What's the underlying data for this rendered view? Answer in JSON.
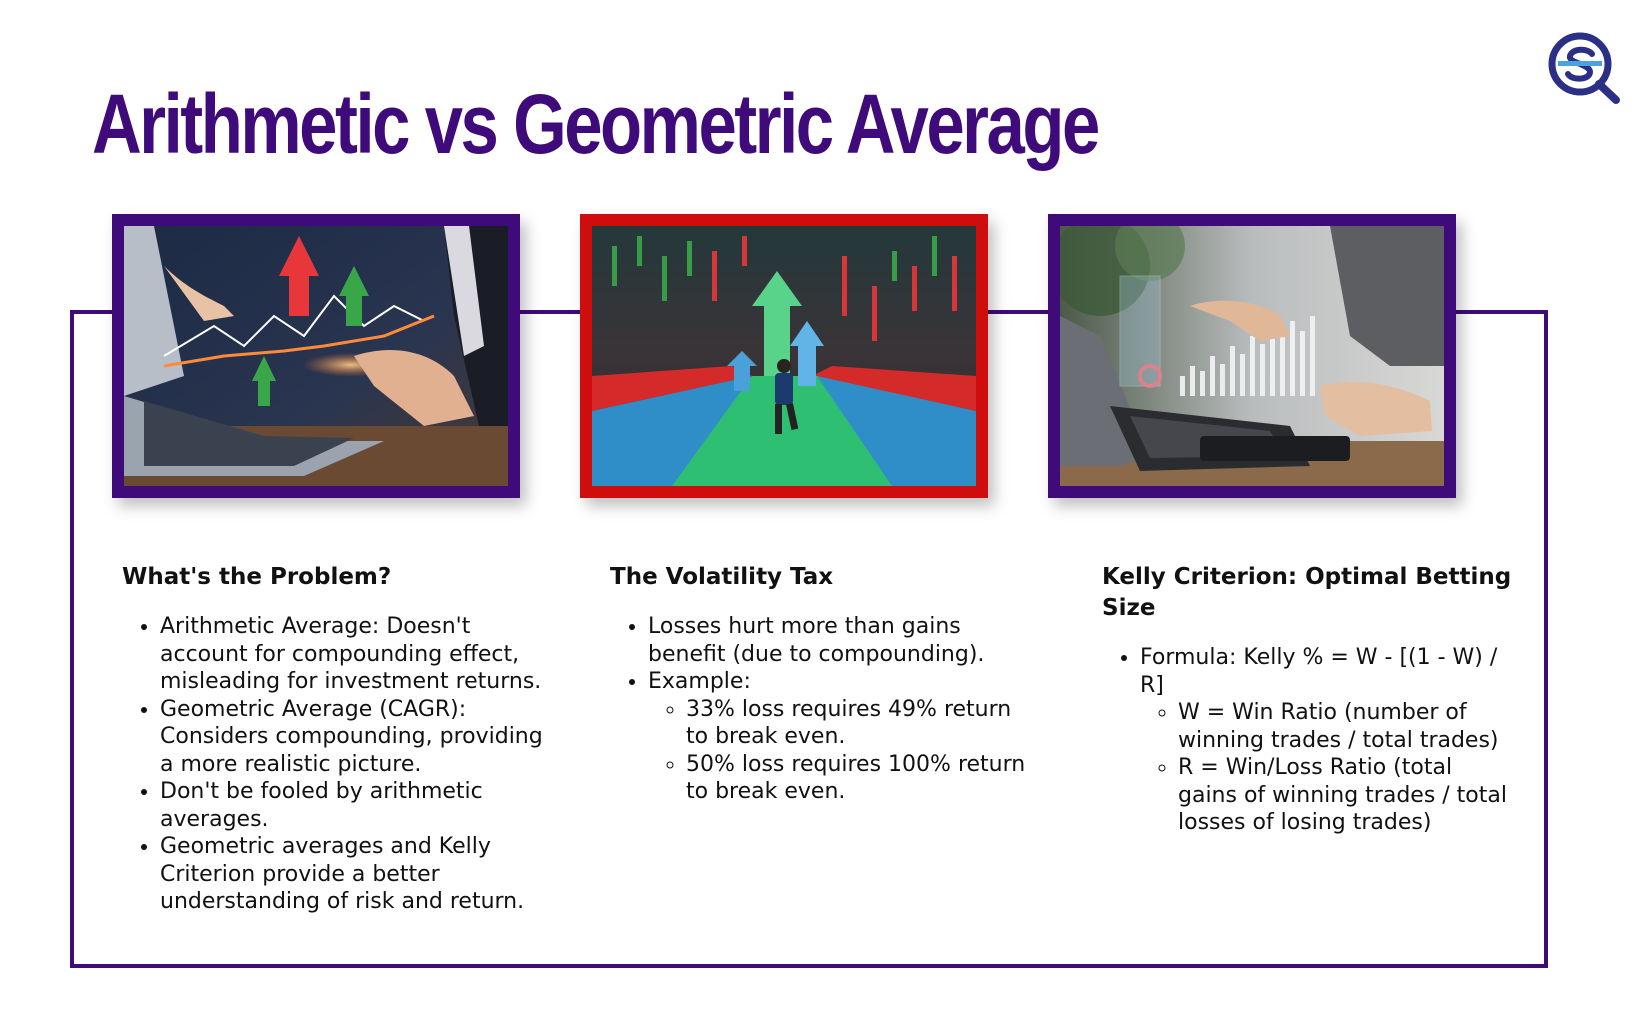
{
  "title": "Arithmetic vs Geometric Average",
  "logo": {
    "icon": "sq-magnifier-logo-icon",
    "color": "#2b2f86"
  },
  "colors": {
    "accent": "#3f0a7a",
    "red_frame": "#d00d0d"
  },
  "images": [
    {
      "icon": "laptop-hands-chart-photo"
    },
    {
      "icon": "runner-arrows-market-photo"
    },
    {
      "icon": "hand-pointing-hologram-chart-photo"
    }
  ],
  "columns": [
    {
      "heading": "What's the Problem?",
      "bullets": [
        "Arithmetic Average: Doesn't account for compounding effect, misleading for investment returns.",
        "Geometric Average (CAGR): Considers compounding, providing a more realistic picture.",
        "Don't be fooled by arithmetic averages.",
        "Geometric averages and Kelly Criterion provide a better understanding of risk and return."
      ]
    },
    {
      "heading": "The Volatility Tax",
      "bullets": [
        "Losses hurt more than gains benefit (due to compounding).",
        "Example:"
      ],
      "sub_bullets": [
        "33% loss requires 49% return to break even.",
        "50% loss requires 100% return to break even."
      ]
    },
    {
      "heading": "Kelly Criterion: Optimal Betting Size",
      "bullets": [
        "Formula: Kelly % = W - [(1 - W) / R]"
      ],
      "sub_bullets": [
        "W = Win Ratio (number of winning trades / total trades)",
        "R = Win/Loss Ratio (total gains of winning trades / total losses of losing trades)"
      ]
    }
  ]
}
